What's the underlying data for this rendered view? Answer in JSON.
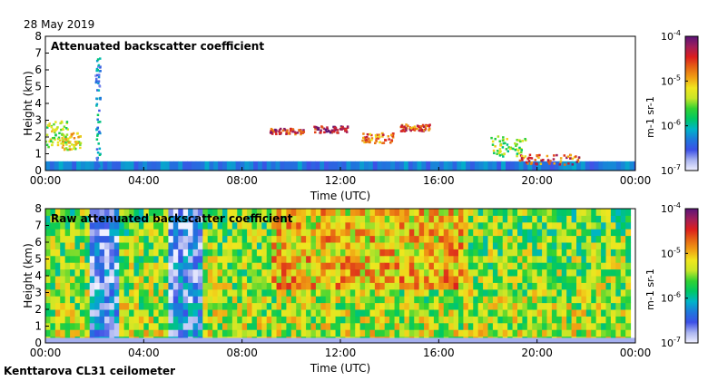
{
  "header": {
    "date": "28 May 2019"
  },
  "footer": {
    "station": "Kenttarova CL31 ceilometer"
  },
  "colors": {
    "stops": [
      "#f0f0ff",
      "#aab4f0",
      "#3c50e6",
      "#1e78dc",
      "#00b4c8",
      "#00c864",
      "#32d232",
      "#c8e628",
      "#f0e61e",
      "#f0a014",
      "#e66414",
      "#dc1e1e",
      "#a01e5a",
      "#5a1478"
    ]
  },
  "chart_data": [
    {
      "type": "heatmap",
      "title": "Attenuated backscatter coefficient",
      "xlabel": "Time (UTC)",
      "ylabel": "Height (km)",
      "xlim_hours": [
        0,
        24
      ],
      "ylim": [
        0,
        8
      ],
      "x_ticks": [
        "00:00",
        "04:00",
        "08:00",
        "12:00",
        "16:00",
        "20:00",
        "00:00"
      ],
      "y_ticks": [
        "0",
        "1",
        "2",
        "3",
        "4",
        "5",
        "6",
        "7",
        "8"
      ],
      "colorbar": {
        "label": "m-1 sr-1",
        "ticks": [
          {
            "base": "10",
            "exp": "-4"
          },
          {
            "base": "10",
            "exp": "-5"
          },
          {
            "base": "10",
            "exp": "-6"
          },
          {
            "base": "10",
            "exp": "-7"
          }
        ]
      }
    },
    {
      "type": "heatmap",
      "title": "Raw attenuated backscatter coefficient",
      "xlabel": "Time (UTC)",
      "ylabel": "Height (km)",
      "xlim_hours": [
        0,
        24
      ],
      "ylim": [
        0,
        8
      ],
      "x_ticks": [
        "00:00",
        "04:00",
        "08:00",
        "12:00",
        "16:00",
        "20:00",
        "00:00"
      ],
      "y_ticks": [
        "0",
        "1",
        "2",
        "3",
        "4",
        "5",
        "6",
        "7",
        "8"
      ],
      "colorbar": {
        "label": "m-1 sr-1",
        "ticks": [
          {
            "base": "10",
            "exp": "-4"
          },
          {
            "base": "10",
            "exp": "-5"
          },
          {
            "base": "10",
            "exp": "-6"
          },
          {
            "base": "10",
            "exp": "-7"
          }
        ]
      }
    }
  ]
}
